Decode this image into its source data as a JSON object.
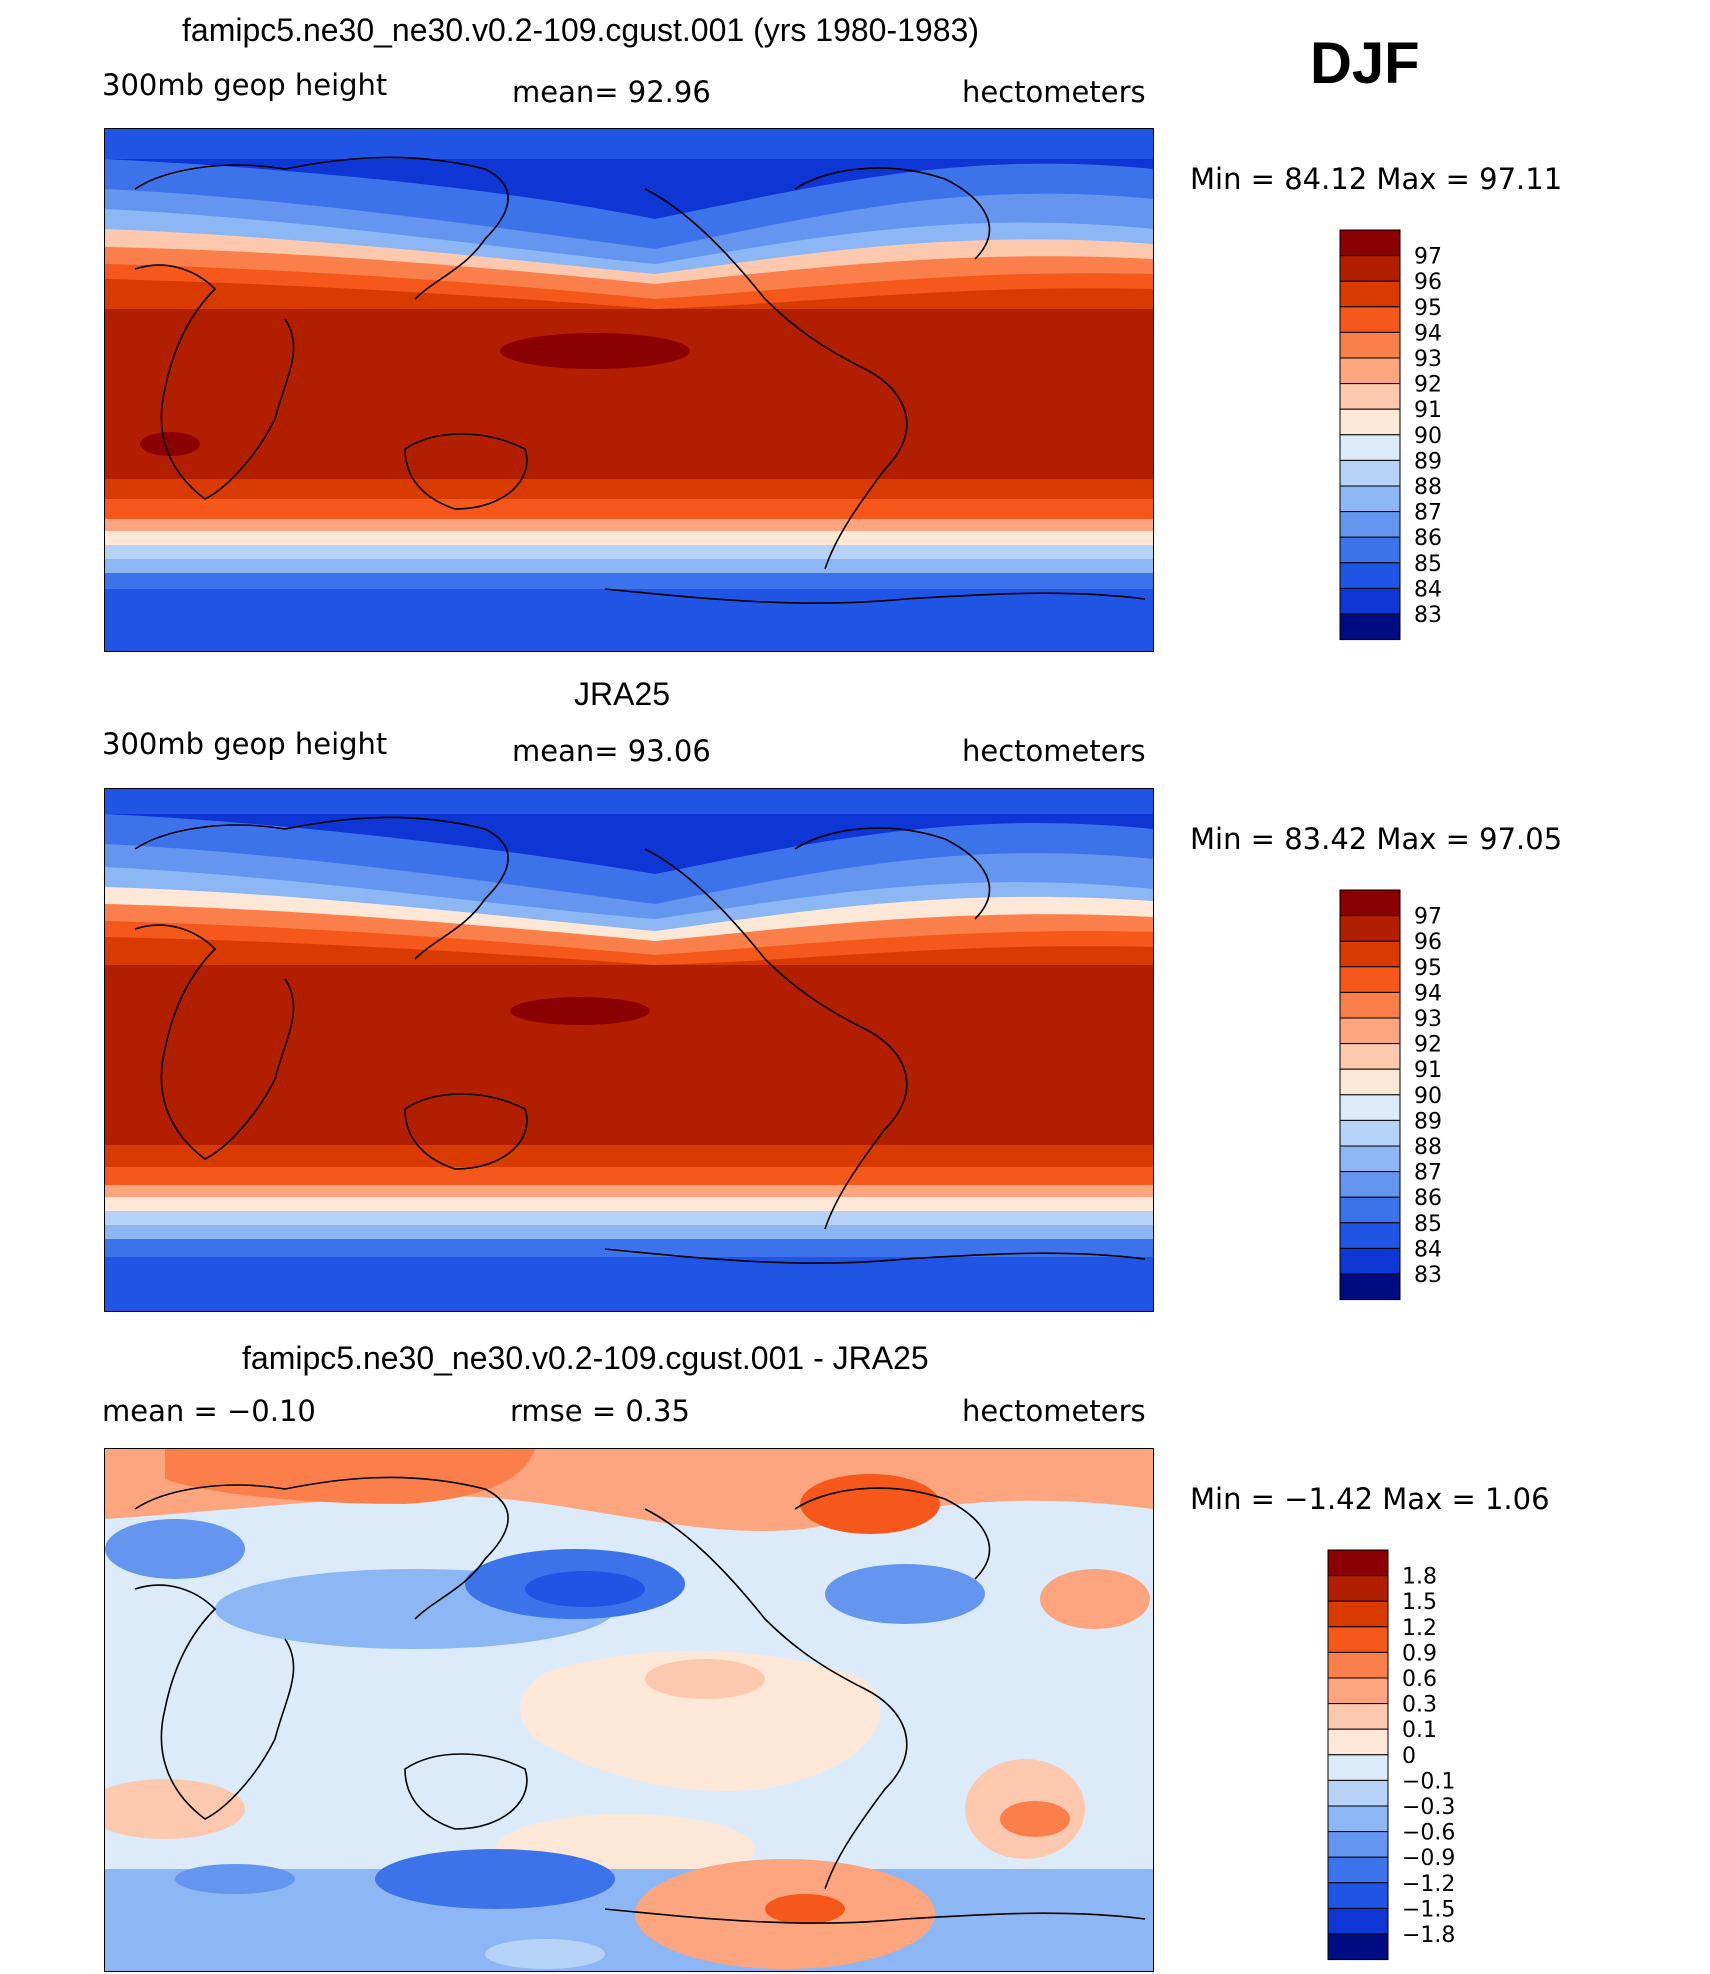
{
  "season": "DJF",
  "panels": [
    {
      "title": "famipc5.ne30_ne30.v0.2-109.cgust.001 (yrs 1980-1983)",
      "left_label": "300mb  geop  height",
      "center_label": "mean=   92.96",
      "right_label": "hectometers",
      "minmax": "Min  =    84.12  Max  =    97.11",
      "colorbar": {
        "labels": [
          "97",
          "96",
          "95",
          "94",
          "93",
          "92",
          "91",
          "90",
          "89",
          "88",
          "87",
          "86",
          "85",
          "84",
          "83"
        ],
        "colors": [
          "#8b0000",
          "#b21e00",
          "#d93a00",
          "#f5581a",
          "#fa7f4a",
          "#fca57e",
          "#fcc9ae",
          "#fde8d8",
          "#dcebfa",
          "#b6d2f6",
          "#8db6f4",
          "#6495ef",
          "#3d73ea",
          "#1f54e4",
          "#0d36d4",
          "#000c82"
        ]
      }
    },
    {
      "title": "JRA25",
      "left_label": "300mb  geop  height",
      "center_label": "mean=   93.06",
      "right_label": "hectometers",
      "minmax": "Min  =    83.42  Max  =    97.05",
      "colorbar": {
        "labels": [
          "97",
          "96",
          "95",
          "94",
          "93",
          "92",
          "91",
          "90",
          "89",
          "88",
          "87",
          "86",
          "85",
          "84",
          "83"
        ],
        "colors": [
          "#8b0000",
          "#b21e00",
          "#d93a00",
          "#f5581a",
          "#fa7f4a",
          "#fca57e",
          "#fcc9ae",
          "#fde8d8",
          "#dcebfa",
          "#b6d2f6",
          "#8db6f4",
          "#6495ef",
          "#3d73ea",
          "#1f54e4",
          "#0d36d4",
          "#000c82"
        ]
      }
    },
    {
      "title": "famipc5.ne30_ne30.v0.2-109.cgust.001 - JRA25",
      "left_label": "mean  =    −0.10",
      "center_label": "rmse  =     0.35",
      "right_label": "hectometers",
      "minmax": "Min  =    −1.42  Max  =     1.06",
      "colorbar": {
        "labels": [
          "1.8",
          "1.5",
          "1.2",
          "0.9",
          "0.6",
          "0.3",
          "0.1",
          "0",
          "−0.1",
          "−0.3",
          "−0.6",
          "−0.9",
          "−1.2",
          "−1.5",
          "−1.8"
        ],
        "colors": [
          "#8b0000",
          "#b21e00",
          "#d93a00",
          "#f5581a",
          "#fa7f4a",
          "#fca57e",
          "#fcc9ae",
          "#fde8d8",
          "#dcebfa",
          "#b6d2f6",
          "#8db6f4",
          "#6495ef",
          "#3d73ea",
          "#1f54e4",
          "#0d36d4",
          "#000c82"
        ]
      }
    }
  ]
}
